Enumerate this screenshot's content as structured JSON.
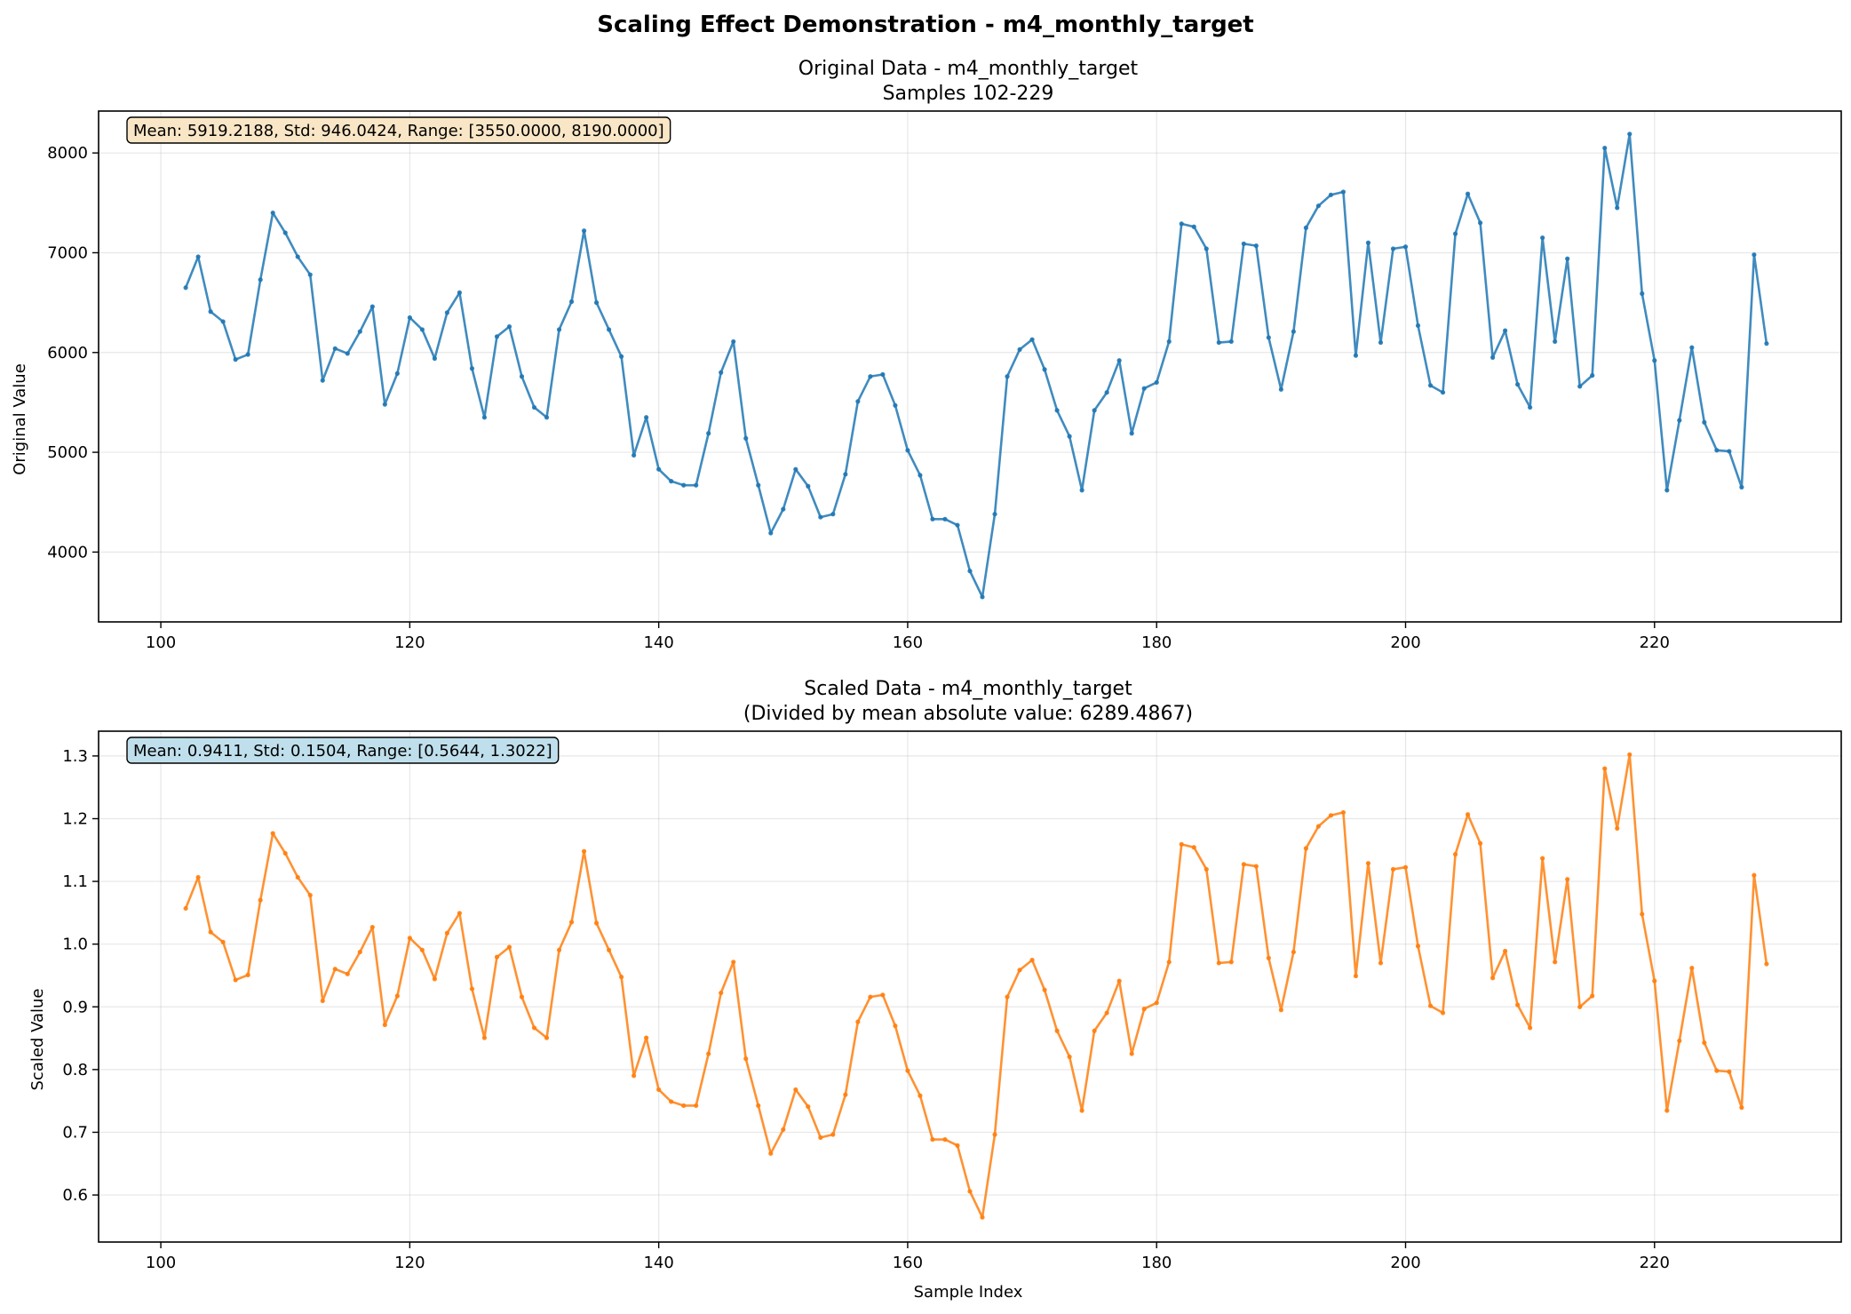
{
  "figure": {
    "suptitle": "Scaling Effect Demonstration - m4_monthly_target"
  },
  "chart_data": [
    {
      "type": "line",
      "title_line1": "Original Data - m4_monthly_target",
      "title_line2": "Samples 102-229",
      "xlabel": "",
      "ylabel": "Original Value",
      "xlim": [
        95,
        235
      ],
      "ylim": [
        3300,
        8420
      ],
      "xticks": [
        100,
        120,
        140,
        160,
        180,
        200,
        220
      ],
      "yticks": [
        4000,
        5000,
        6000,
        7000,
        8000
      ],
      "grid": true,
      "color": "#1f77b4",
      "stats_box": "Mean: 5919.2188, Std: 946.0424, Range: [3550.0000, 8190.0000]",
      "stats_box_color": "#f8e3c0",
      "x_start": 102,
      "x_end": 229,
      "values": [
        6650,
        6960,
        6410,
        6310,
        5930,
        5980,
        6730,
        7400,
        7200,
        6960,
        6780,
        5720,
        6040,
        5990,
        6210,
        6460,
        5480,
        5790,
        6350,
        6230,
        5940,
        6400,
        6600,
        5840,
        5350,
        6160,
        6260,
        5760,
        5450,
        5350,
        6230,
        6510,
        7220,
        6500,
        6230,
        5960,
        4970,
        5350,
        4830,
        4710,
        4670,
        4670,
        5190,
        5800,
        6110,
        5140,
        4670,
        4190,
        4430,
        4830,
        4660,
        4350,
        4380,
        4780,
        5510,
        5760,
        5780,
        5470,
        5020,
        4770,
        4330,
        4330,
        4270,
        3810,
        3550,
        4380,
        5760,
        6030,
        6130,
        5830,
        5420,
        5160,
        4620,
        5420,
        5600,
        5920,
        5190,
        5640,
        5700,
        6110,
        7290,
        7260,
        7040,
        6100,
        6110,
        7090,
        7070,
        6150,
        5630,
        6210,
        7250,
        7470,
        7580,
        7610,
        5970,
        7100,
        6100,
        7040,
        7060,
        6270,
        5670,
        5600,
        7190,
        7590,
        7300,
        5950,
        6220,
        5680,
        5450,
        7150,
        6110,
        6940,
        5660,
        5770,
        8050,
        7450,
        8190,
        6590,
        5920,
        4620,
        5320,
        6050,
        5300,
        5020,
        5010,
        4650,
        6980,
        6090
      ]
    },
    {
      "type": "line",
      "title_line1": "Scaled Data - m4_monthly_target",
      "title_line2": "(Divided by mean absolute value: 6289.4867)",
      "xlabel": "Sample Index",
      "ylabel": "Scaled Value",
      "xlim": [
        95,
        235
      ],
      "ylim": [
        0.525,
        1.3395
      ],
      "xticks": [
        100,
        120,
        140,
        160,
        180,
        200,
        220
      ],
      "yticks": [
        0.6,
        0.7,
        0.8,
        0.9,
        1.0,
        1.1,
        1.2,
        1.3
      ],
      "grid": true,
      "color": "#ff7f0e",
      "stats_box": "Mean: 0.9411, Std: 0.1504, Range: [0.5644, 1.3022]",
      "stats_box_color": "#b9dcea",
      "x_start": 102,
      "x_end": 229,
      "values": [
        1.057,
        1.1066,
        1.0192,
        1.0033,
        0.9429,
        0.9508,
        1.0701,
        1.1766,
        1.1448,
        1.1066,
        1.078,
        0.9095,
        0.9603,
        0.9524,
        0.9874,
        1.0271,
        0.8713,
        0.9174,
        1.0097,
        0.9906,
        0.9445,
        1.0176,
        1.0494,
        0.9286,
        0.8506,
        0.9794,
        0.9953,
        0.9158,
        0.8665,
        0.8506,
        0.9906,
        1.035,
        1.148,
        1.0335,
        0.9906,
        0.9476,
        0.7902,
        0.8506,
        0.768,
        0.7489,
        0.7425,
        0.7425,
        0.8252,
        0.9222,
        0.9715,
        0.8172,
        0.7425,
        0.6662,
        0.7043,
        0.768,
        0.7409,
        0.6916,
        0.6964,
        0.76,
        0.8761,
        0.9158,
        0.919,
        0.8697,
        0.7982,
        0.7584,
        0.6885,
        0.6885,
        0.6789,
        0.6058,
        0.5644,
        0.6964,
        0.9158,
        0.9587,
        0.9746,
        0.927,
        0.8618,
        0.8204,
        0.7346,
        0.8618,
        0.8904,
        0.9413,
        0.8252,
        0.8967,
        0.9063,
        0.9715,
        1.1591,
        1.1543,
        1.1193,
        0.9699,
        0.9715,
        1.1273,
        1.1241,
        0.9778,
        0.8951,
        0.9874,
        1.1527,
        1.1877,
        1.2052,
        1.21,
        0.9492,
        1.1289,
        0.9699,
        1.1193,
        1.1225,
        0.9969,
        0.9015,
        0.8904,
        1.1432,
        1.2068,
        1.1607,
        0.946,
        0.989,
        0.9031,
        0.8665,
        1.1368,
        0.9715,
        1.1034,
        0.8999,
        0.9174,
        1.2799,
        1.1845,
        1.3022,
        1.0478,
        0.9413,
        0.7346,
        0.8459,
        0.9619,
        0.8427,
        0.7982,
        0.7966,
        0.7393,
        1.1098,
        0.9683
      ]
    }
  ]
}
